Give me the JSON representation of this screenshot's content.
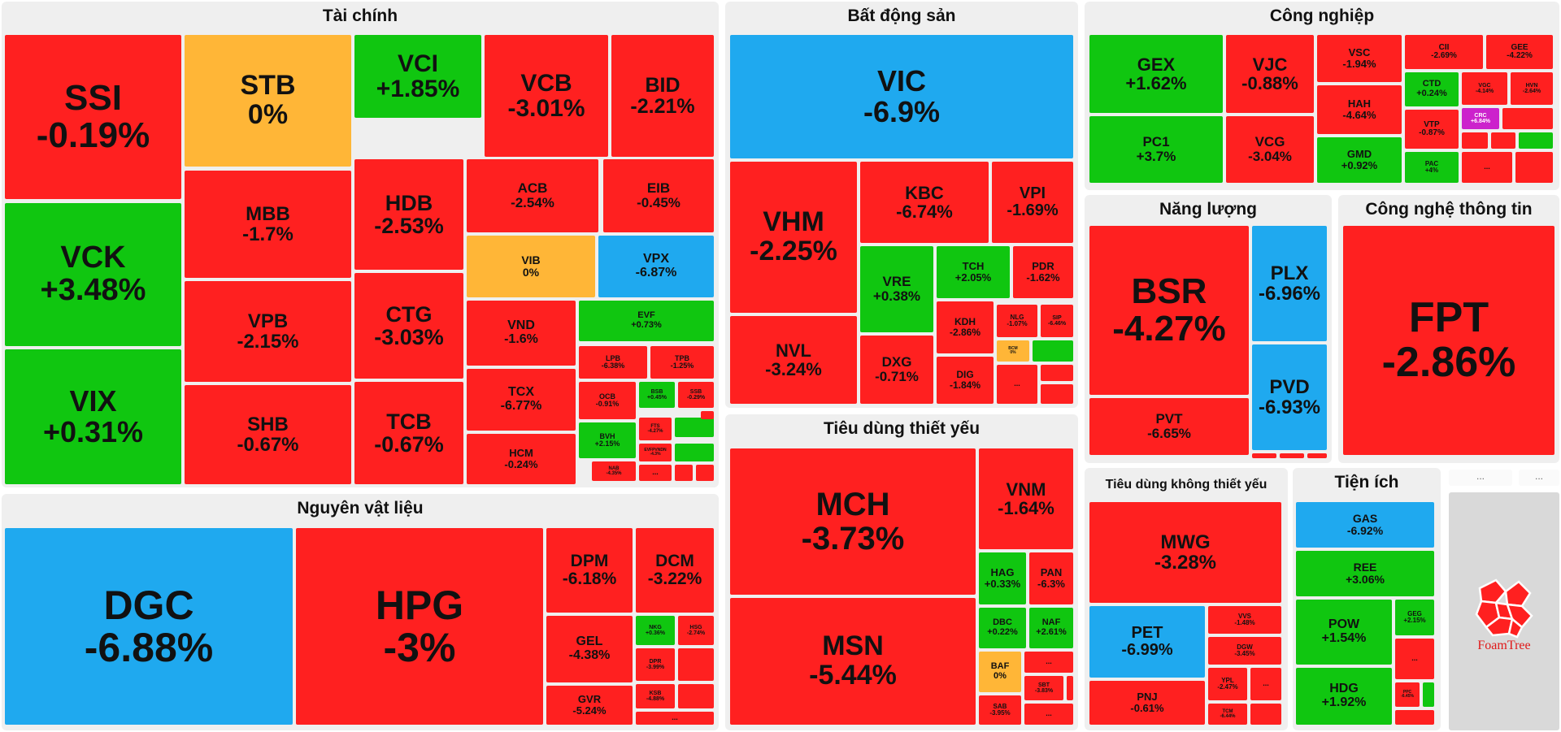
{
  "colors": {
    "down": "#ff2020",
    "up": "#10c610",
    "ref": "#ffb637",
    "floor": "#1fa9ef",
    "ceiling": "#cc22cc"
  },
  "chart_data": {
    "type": "treemap",
    "sectors": [
      {
        "name": "Tài chính",
        "stocks": [
          {
            "t": "SSI",
            "c": -0.19
          },
          {
            "t": "STB",
            "c": 0
          },
          {
            "t": "VCI",
            "c": 1.85
          },
          {
            "t": "VCB",
            "c": -3.01
          },
          {
            "t": "BID",
            "c": -2.21
          },
          {
            "t": "VCK",
            "c": 3.48
          },
          {
            "t": "MBB",
            "c": -1.7
          },
          {
            "t": "HDB",
            "c": -2.53
          },
          {
            "t": "ACB",
            "c": -2.54
          },
          {
            "t": "EIB",
            "c": -0.45
          },
          {
            "t": "VIB",
            "c": 0
          },
          {
            "t": "VPX",
            "c": -6.87
          },
          {
            "t": "VIX",
            "c": 0.31
          },
          {
            "t": "VPB",
            "c": -2.15
          },
          {
            "t": "CTG",
            "c": -3.03
          },
          {
            "t": "VND",
            "c": -1.6
          },
          {
            "t": "EVF",
            "c": 0.73
          },
          {
            "t": "LPB",
            "c": -6.38
          },
          {
            "t": "TPB",
            "c": -1.25
          },
          {
            "t": "SHB",
            "c": -0.67
          },
          {
            "t": "TCB",
            "c": -0.67
          },
          {
            "t": "TCX",
            "c": -6.77
          },
          {
            "t": "OCB",
            "c": -0.91
          },
          {
            "t": "BSB",
            "c": 0.45
          },
          {
            "t": "SSB",
            "c": -0.29
          },
          {
            "t": "HCM",
            "c": -0.24
          },
          {
            "t": "BVH",
            "c": 2.15
          },
          {
            "t": "FTS",
            "c": -4.27
          },
          {
            "t": "EVFPVNDN",
            "c": -4.3
          },
          {
            "t": "NAB",
            "c": -4.35
          }
        ]
      },
      {
        "name": "Bất động sản",
        "stocks": [
          {
            "t": "VIC",
            "c": -6.9
          },
          {
            "t": "VHM",
            "c": -2.25
          },
          {
            "t": "KBC",
            "c": -6.74
          },
          {
            "t": "VPI",
            "c": -1.69
          },
          {
            "t": "VRE",
            "c": 0.38
          },
          {
            "t": "TCH",
            "c": 2.05
          },
          {
            "t": "PDR",
            "c": -1.62
          },
          {
            "t": "KDH",
            "c": -2.86
          },
          {
            "t": "NLG",
            "c": -1.07
          },
          {
            "t": "SIP",
            "c": -6.46
          },
          {
            "t": "NVL",
            "c": -3.24
          },
          {
            "t": "DXG",
            "c": -0.71
          },
          {
            "t": "DIG",
            "c": -1.84
          },
          {
            "t": "BCM",
            "c": 0
          }
        ]
      },
      {
        "name": "Công nghiệp",
        "stocks": [
          {
            "t": "GEX",
            "c": 1.62
          },
          {
            "t": "VJC",
            "c": -0.88
          },
          {
            "t": "VSC",
            "c": -1.94
          },
          {
            "t": "CII",
            "c": -2.69
          },
          {
            "t": "GEE",
            "c": -4.22
          },
          {
            "t": "HAH",
            "c": -4.64
          },
          {
            "t": "CTD",
            "c": 0.24
          },
          {
            "t": "VGC",
            "c": -4.14
          },
          {
            "t": "HVN",
            "c": -2.64
          },
          {
            "t": "CRC",
            "c": 6.84
          },
          {
            "t": "PC1",
            "c": 3.7
          },
          {
            "t": "VCG",
            "c": -3.04
          },
          {
            "t": "GMD",
            "c": 0.92
          },
          {
            "t": "VTP",
            "c": -0.87
          },
          {
            "t": "PAC",
            "c": 4
          }
        ]
      },
      {
        "name": "Năng lượng",
        "stocks": [
          {
            "t": "BSR",
            "c": -4.27
          },
          {
            "t": "PLX",
            "c": -6.96
          },
          {
            "t": "PVD",
            "c": -6.93
          },
          {
            "t": "PVT",
            "c": -6.65
          }
        ]
      },
      {
        "name": "Công nghệ thông tin",
        "stocks": [
          {
            "t": "FPT",
            "c": -2.86
          }
        ]
      },
      {
        "name": "Nguyên vật liệu",
        "stocks": [
          {
            "t": "DGC",
            "c": -6.88
          },
          {
            "t": "HPG",
            "c": -3
          },
          {
            "t": "DPM",
            "c": -6.18
          },
          {
            "t": "DCM",
            "c": -3.22
          },
          {
            "t": "GEL",
            "c": -4.38
          },
          {
            "t": "NKG",
            "c": 0.36
          },
          {
            "t": "HSG",
            "c": -2.74
          },
          {
            "t": "DPR",
            "c": -3.99
          },
          {
            "t": "GVR",
            "c": -5.24
          },
          {
            "t": "KSB",
            "c": -4.88
          }
        ]
      },
      {
        "name": "Tiêu dùng thiết yếu",
        "stocks": [
          {
            "t": "MCH",
            "c": -3.73
          },
          {
            "t": "VNM",
            "c": -1.64
          },
          {
            "t": "HAG",
            "c": 0.33
          },
          {
            "t": "PAN",
            "c": -6.3
          },
          {
            "t": "DBC",
            "c": 0.22
          },
          {
            "t": "NAF",
            "c": 2.61
          },
          {
            "t": "MSN",
            "c": -5.44
          },
          {
            "t": "BAF",
            "c": 0
          },
          {
            "t": "SBT",
            "c": -3.83
          },
          {
            "t": "SAB",
            "c": -3.95
          }
        ]
      },
      {
        "name": "Tiêu dùng không thiết yếu",
        "stocks": [
          {
            "t": "MWG",
            "c": -3.28
          },
          {
            "t": "PET",
            "c": -6.99
          },
          {
            "t": "VVS",
            "c": -1.48
          },
          {
            "t": "DGW",
            "c": -3.45
          },
          {
            "t": "PNJ",
            "c": -0.61
          },
          {
            "t": "YPL",
            "c": -2.47
          },
          {
            "t": "TCM",
            "c": -6.44
          }
        ]
      },
      {
        "name": "Tiện ích",
        "stocks": [
          {
            "t": "GAS",
            "c": -6.92
          },
          {
            "t": "REE",
            "c": 3.06
          },
          {
            "t": "POW",
            "c": 1.54
          },
          {
            "t": "GEG",
            "c": 2.15
          },
          {
            "t": "HDG",
            "c": 1.92
          },
          {
            "t": "PPC",
            "c": -6.45
          }
        ]
      }
    ]
  },
  "ui": {
    "more": "...",
    "brand": "FoamTree"
  }
}
